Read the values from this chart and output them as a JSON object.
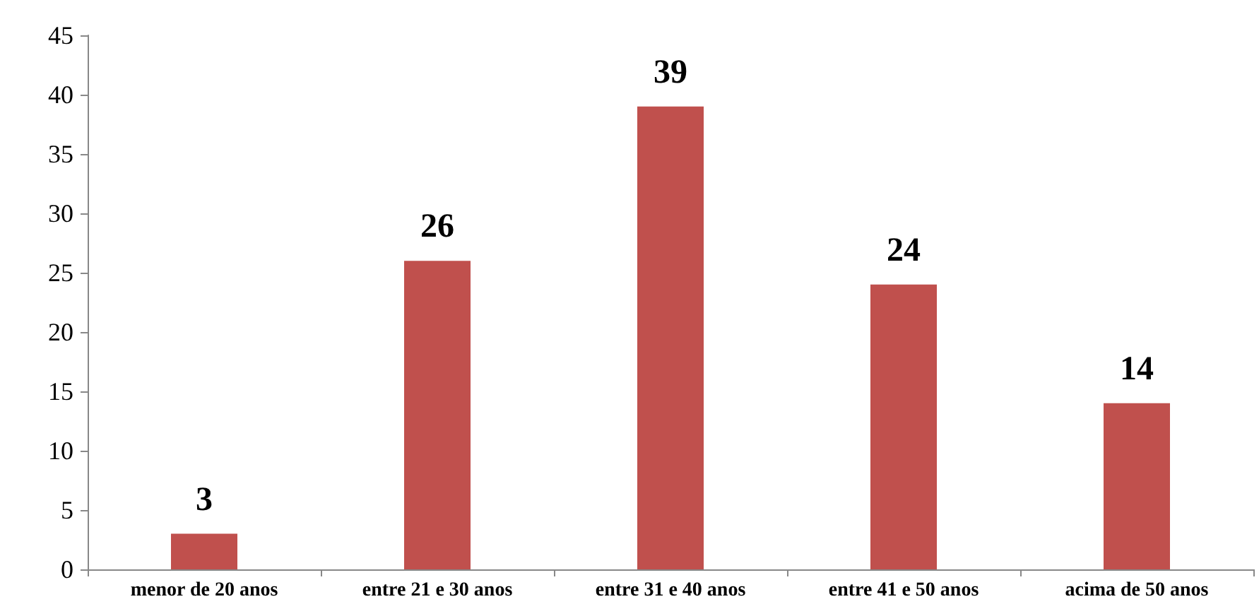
{
  "chart_data": {
    "type": "bar",
    "categories": [
      "menor de 20 anos",
      "entre 21 e 30 anos",
      "entre 31 e 40 anos",
      "entre 41 e 50 anos",
      "acima de 50 anos"
    ],
    "values": [
      3,
      26,
      39,
      24,
      14
    ],
    "color": "#c0504d",
    "ylim": [
      0,
      45
    ],
    "yticks": [
      0,
      5,
      10,
      15,
      20,
      25,
      30,
      35,
      40,
      45
    ],
    "grid": false,
    "data_labels": true
  }
}
